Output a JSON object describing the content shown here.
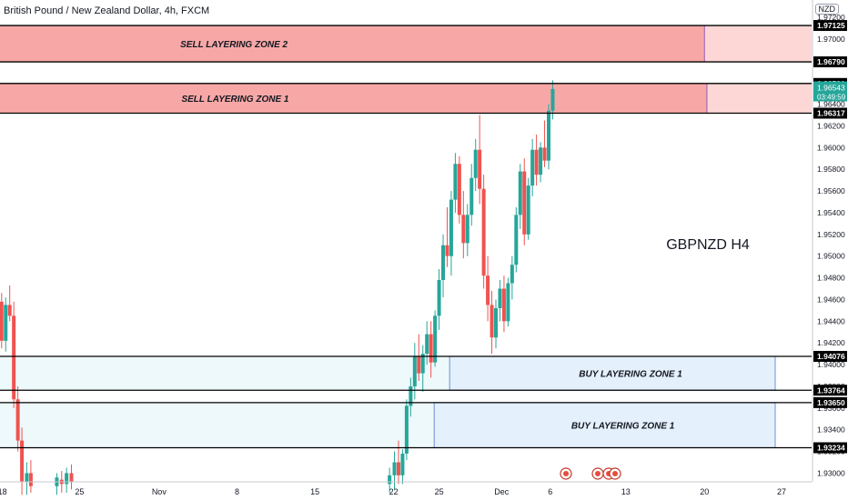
{
  "header": {
    "title": "British Pound / New Zealand Dollar, 4h, FXCM",
    "currency": "NZD"
  },
  "annotation": "GBPNZD H4",
  "colors": {
    "up": "#26a69a",
    "down": "#ef5350",
    "sell_zone_fill": "#f7a8a6",
    "sell_zone_ext": "#fcd7d6",
    "buy_zone_fill": "#e4f0fb",
    "buy_zone_left": "#eef9fb",
    "line": "#000000",
    "axis_text": "#131722",
    "current_price_bg": "#26a69a"
  },
  "chart_data": {
    "type": "candlestick",
    "symbol": "GBPNZD",
    "timeframe": "4h",
    "y_axis_ticks": [
      "1.97200",
      "1.97000",
      "1.96800",
      "1.96600",
      "1.96400",
      "1.96200",
      "1.96000",
      "1.95800",
      "1.95600",
      "1.95400",
      "1.95200",
      "1.95000",
      "1.94800",
      "1.94600",
      "1.94400",
      "1.94200",
      "1.94000",
      "1.93800",
      "1.93600",
      "1.93400",
      "1.93200",
      "1.93000"
    ],
    "ylim": [
      1.9292,
      1.9736
    ],
    "x_axis_ticks": [
      {
        "label": "18",
        "pos": 0.003
      },
      {
        "label": "25",
        "pos": 0.098
      },
      {
        "label": "Nov",
        "pos": 0.196
      },
      {
        "label": "8",
        "pos": 0.292
      },
      {
        "label": "15",
        "pos": 0.388
      },
      {
        "label": "22",
        "pos": 0.485
      },
      {
        "label": "25",
        "pos": 0.541
      },
      {
        "label": "Dec",
        "pos": 0.618
      },
      {
        "label": "6",
        "pos": 0.678
      },
      {
        "label": "13",
        "pos": 0.771
      },
      {
        "label": "20",
        "pos": 0.868
      },
      {
        "label": "27",
        "pos": 0.963
      }
    ],
    "price_levels": [
      {
        "label": "1.97125",
        "value": 1.97125
      },
      {
        "label": "1.96790",
        "value": 1.9679
      },
      {
        "label": "1.96591",
        "value": 1.96591
      },
      {
        "label": "1.96317",
        "value": 1.96317
      },
      {
        "label": "1.94076",
        "value": 1.94076
      },
      {
        "label": "1.93764",
        "value": 1.93764
      },
      {
        "label": "1.93650",
        "value": 1.9365
      },
      {
        "label": "1.93234",
        "value": 1.93234
      }
    ],
    "current_price": {
      "value": 1.96543,
      "label": "1.96543",
      "countdown": "03:49:59"
    },
    "zones": [
      {
        "label": "SELL LAYERING ZONE 2",
        "kind": "sell",
        "top": 1.97125,
        "bottom": 1.9679,
        "x_start": 0.0,
        "x_end": 0.868
      },
      {
        "label": "SELL LAYERING ZONE 1",
        "kind": "sell",
        "top": 1.96591,
        "bottom": 1.96317,
        "x_start": 0.0,
        "x_end": 0.871
      },
      {
        "label": "BUY LAYERING ZONE 1",
        "kind": "buy",
        "top": 1.94076,
        "bottom": 1.93764,
        "x_start": 0.554,
        "x_end": 1.0
      },
      {
        "label": "BUY LAYERING ZONE 1",
        "kind": "buy",
        "top": 1.9365,
        "bottom": 1.93234,
        "x_start": 0.535,
        "x_end": 1.0
      }
    ],
    "candles": [
      {
        "x": 0.002,
        "o": 1.9458,
        "h": 1.9466,
        "l": 1.9415,
        "c": 1.9422
      },
      {
        "x": 0.007,
        "o": 1.9422,
        "h": 1.9462,
        "l": 1.9412,
        "c": 1.9455
      },
      {
        "x": 0.012,
        "o": 1.9455,
        "h": 1.9473,
        "l": 1.944,
        "c": 1.9445
      },
      {
        "x": 0.017,
        "o": 1.9445,
        "h": 1.9458,
        "l": 1.936,
        "c": 1.9368
      },
      {
        "x": 0.022,
        "o": 1.9368,
        "h": 1.938,
        "l": 1.932,
        "c": 1.933
      },
      {
        "x": 0.027,
        "o": 1.933,
        "h": 1.9342,
        "l": 1.928,
        "c": 1.9292
      },
      {
        "x": 0.033,
        "o": 1.9292,
        "h": 1.931,
        "l": 1.928,
        "c": 1.93
      },
      {
        "x": 0.038,
        "o": 1.93,
        "h": 1.9312,
        "l": 1.9282,
        "c": 1.9288
      },
      {
        "x": 0.07,
        "o": 1.9288,
        "h": 1.93,
        "l": 1.928,
        "c": 1.9296
      },
      {
        "x": 0.076,
        "o": 1.9294,
        "h": 1.9302,
        "l": 1.9282,
        "c": 1.929
      },
      {
        "x": 0.082,
        "o": 1.929,
        "h": 1.9305,
        "l": 1.9282,
        "c": 1.93
      },
      {
        "x": 0.088,
        "o": 1.93,
        "h": 1.9308,
        "l": 1.9285,
        "c": 1.9292
      },
      {
        "x": 0.48,
        "o": 1.929,
        "h": 1.9305,
        "l": 1.9282,
        "c": 1.9298
      },
      {
        "x": 0.486,
        "o": 1.9298,
        "h": 1.932,
        "l": 1.9285,
        "c": 1.931
      },
      {
        "x": 0.491,
        "o": 1.931,
        "h": 1.933,
        "l": 1.929,
        "c": 1.9298
      },
      {
        "x": 0.496,
        "o": 1.9298,
        "h": 1.9322,
        "l": 1.929,
        "c": 1.9318
      },
      {
        "x": 0.501,
        "o": 1.9318,
        "h": 1.9368,
        "l": 1.9312,
        "c": 1.9362
      },
      {
        "x": 0.506,
        "o": 1.9362,
        "h": 1.9388,
        "l": 1.9352,
        "c": 1.938
      },
      {
        "x": 0.511,
        "o": 1.938,
        "h": 1.942,
        "l": 1.9368,
        "c": 1.9408
      },
      {
        "x": 0.516,
        "o": 1.9408,
        "h": 1.9428,
        "l": 1.9385,
        "c": 1.9392
      },
      {
        "x": 0.521,
        "o": 1.9392,
        "h": 1.9418,
        "l": 1.9375,
        "c": 1.941
      },
      {
        "x": 0.526,
        "o": 1.941,
        "h": 1.944,
        "l": 1.94,
        "c": 1.9428
      },
      {
        "x": 0.531,
        "o": 1.9428,
        "h": 1.944,
        "l": 1.9388,
        "c": 1.9402
      },
      {
        "x": 0.536,
        "o": 1.9402,
        "h": 1.945,
        "l": 1.9398,
        "c": 1.9445
      },
      {
        "x": 0.541,
        "o": 1.9445,
        "h": 1.9488,
        "l": 1.9432,
        "c": 1.9478
      },
      {
        "x": 0.546,
        "o": 1.9478,
        "h": 1.952,
        "l": 1.9462,
        "c": 1.951
      },
      {
        "x": 0.551,
        "o": 1.951,
        "h": 1.9545,
        "l": 1.949,
        "c": 1.95
      },
      {
        "x": 0.556,
        "o": 1.95,
        "h": 1.956,
        "l": 1.9482,
        "c": 1.9552
      },
      {
        "x": 0.561,
        "o": 1.9552,
        "h": 1.9595,
        "l": 1.954,
        "c": 1.9585
      },
      {
        "x": 0.566,
        "o": 1.9585,
        "h": 1.9592,
        "l": 1.953,
        "c": 1.9538
      },
      {
        "x": 0.571,
        "o": 1.9538,
        "h": 1.956,
        "l": 1.9498,
        "c": 1.9512
      },
      {
        "x": 0.576,
        "o": 1.9512,
        "h": 1.9548,
        "l": 1.95,
        "c": 1.9538
      },
      {
        "x": 0.581,
        "o": 1.9538,
        "h": 1.9585,
        "l": 1.9528,
        "c": 1.9572
      },
      {
        "x": 0.586,
        "o": 1.9572,
        "h": 1.9608,
        "l": 1.956,
        "c": 1.9598
      },
      {
        "x": 0.591,
        "o": 1.9598,
        "h": 1.963,
        "l": 1.9548,
        "c": 1.9562
      },
      {
        "x": 0.596,
        "o": 1.9562,
        "h": 1.9575,
        "l": 1.947,
        "c": 1.9482
      },
      {
        "x": 0.601,
        "o": 1.9482,
        "h": 1.95,
        "l": 1.944,
        "c": 1.9455
      },
      {
        "x": 0.606,
        "o": 1.9455,
        "h": 1.9468,
        "l": 1.941,
        "c": 1.9425
      },
      {
        "x": 0.611,
        "o": 1.9425,
        "h": 1.946,
        "l": 1.9415,
        "c": 1.9452
      },
      {
        "x": 0.616,
        "o": 1.9452,
        "h": 1.9478,
        "l": 1.944,
        "c": 1.947
      },
      {
        "x": 0.621,
        "o": 1.947,
        "h": 1.9482,
        "l": 1.943,
        "c": 1.944
      },
      {
        "x": 0.626,
        "o": 1.944,
        "h": 1.948,
        "l": 1.9435,
        "c": 1.9475
      },
      {
        "x": 0.631,
        "o": 1.9475,
        "h": 1.95,
        "l": 1.946,
        "c": 1.9492
      },
      {
        "x": 0.636,
        "o": 1.9492,
        "h": 1.9545,
        "l": 1.9485,
        "c": 1.9538
      },
      {
        "x": 0.641,
        "o": 1.9538,
        "h": 1.9585,
        "l": 1.9525,
        "c": 1.9578
      },
      {
        "x": 0.646,
        "o": 1.9578,
        "h": 1.959,
        "l": 1.951,
        "c": 1.952
      },
      {
        "x": 0.651,
        "o": 1.952,
        "h": 1.9572,
        "l": 1.9515,
        "c": 1.9565
      },
      {
        "x": 0.656,
        "o": 1.9565,
        "h": 1.9608,
        "l": 1.9555,
        "c": 1.9598
      },
      {
        "x": 0.661,
        "o": 1.9598,
        "h": 1.9612,
        "l": 1.9565,
        "c": 1.9575
      },
      {
        "x": 0.666,
        "o": 1.9575,
        "h": 1.9605,
        "l": 1.9568,
        "c": 1.96
      },
      {
        "x": 0.671,
        "o": 1.96,
        "h": 1.9625,
        "l": 1.9582,
        "c": 1.9588
      },
      {
        "x": 0.676,
        "o": 1.9588,
        "h": 1.964,
        "l": 1.958,
        "c": 1.9634
      },
      {
        "x": 0.681,
        "o": 1.9634,
        "h": 1.9662,
        "l": 1.9626,
        "c": 1.9654
      }
    ]
  }
}
